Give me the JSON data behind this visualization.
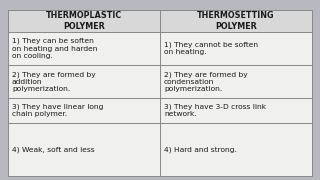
{
  "headers": [
    "THERMOPLASTIC\nPOLYMER",
    "THERMOSETTING\nPOLYMER"
  ],
  "rows": [
    [
      "1) They can be soften\non heating and harden\non cooling.",
      "1) They cannot be soften\non heating."
    ],
    [
      "2) They are formed by\naddition\npolymerization.",
      "2) They are formed by\ncondensation\npolymerization."
    ],
    [
      "3) They have linear long\nchain polymer.",
      "3) They have 3-D cross link\nnetwork."
    ],
    [
      "4) Weak, soft and less",
      "4) Hard and strong."
    ]
  ],
  "bg_color": "#b8b8c0",
  "table_bg": "#f0f0ee",
  "header_bg": "#d8d8d8",
  "line_color": "#888888",
  "text_color": "#1a1a1a",
  "header_fontsize": 5.8,
  "cell_fontsize": 5.4
}
